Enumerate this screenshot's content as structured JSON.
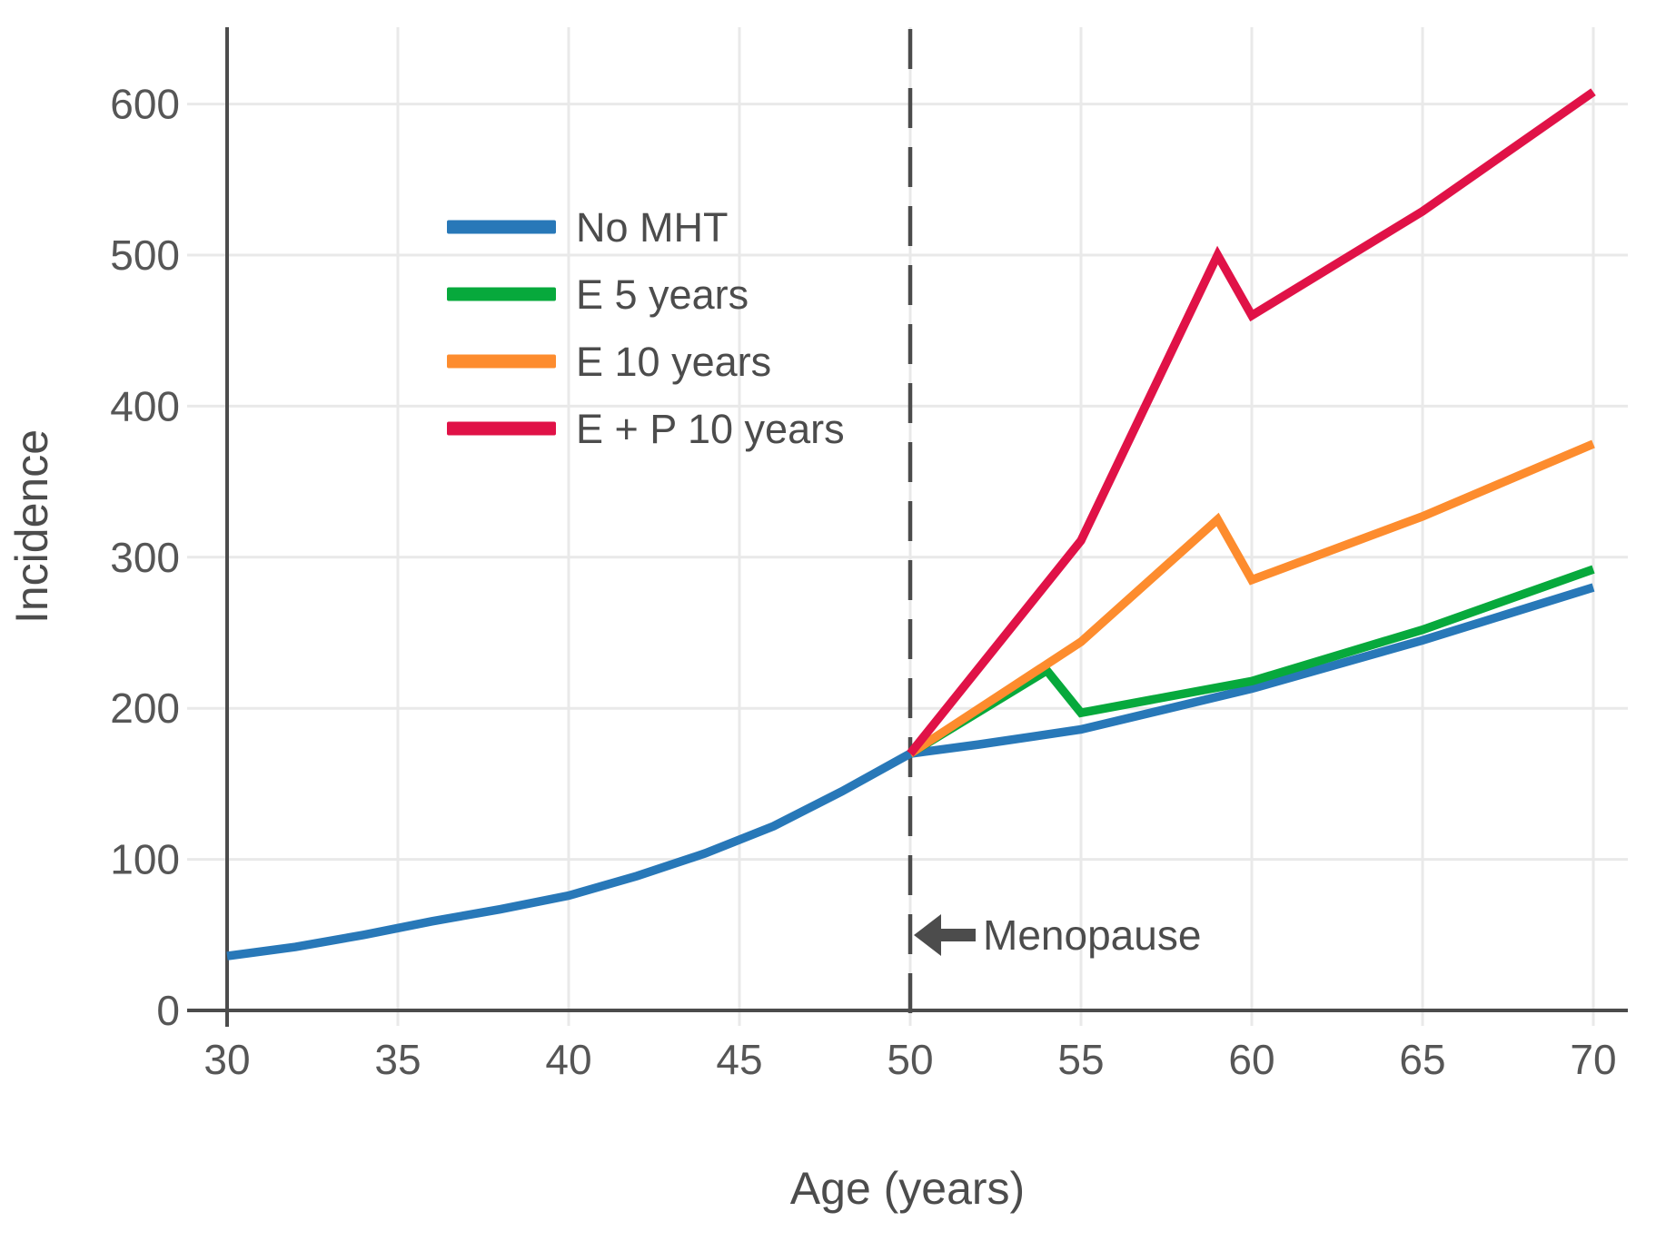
{
  "chart_data": {
    "type": "line",
    "title": "",
    "xlabel": "Age (years)",
    "ylabel": "Incidence",
    "x_ticks": [
      30,
      35,
      40,
      45,
      50,
      55,
      60,
      65,
      70
    ],
    "y_ticks": [
      0,
      100,
      200,
      300,
      400,
      500,
      600
    ],
    "xlim": [
      30,
      71
    ],
    "ylim": [
      0,
      650
    ],
    "grid": true,
    "legend_position": "upper-left-inside",
    "colors": {
      "axis": "#4c4c4c",
      "gridline": "#e9e9e9",
      "dashed_line": "#4c4c4c",
      "tick_text": "#565656"
    },
    "series": [
      {
        "name": "No MHT",
        "color": "#2878b8",
        "points": [
          [
            30,
            36
          ],
          [
            32,
            42
          ],
          [
            34,
            50
          ],
          [
            36,
            59
          ],
          [
            38,
            67
          ],
          [
            40,
            76
          ],
          [
            42,
            89
          ],
          [
            44,
            104
          ],
          [
            46,
            122
          ],
          [
            48,
            145
          ],
          [
            50,
            170
          ],
          [
            52,
            176
          ],
          [
            55,
            186
          ],
          [
            60,
            213
          ],
          [
            65,
            245
          ],
          [
            70,
            280
          ]
        ]
      },
      {
        "name": "E 5 years",
        "color": "#07a93c",
        "points": [
          [
            50,
            170
          ],
          [
            54,
            225
          ],
          [
            55,
            197
          ],
          [
            60,
            218
          ],
          [
            65,
            252
          ],
          [
            70,
            292
          ]
        ]
      },
      {
        "name": "E 10 years",
        "color": "#fd8c2e",
        "points": [
          [
            50,
            170
          ],
          [
            55,
            244
          ],
          [
            59,
            325
          ],
          [
            60,
            285
          ],
          [
            65,
            327
          ],
          [
            70,
            375
          ]
        ]
      },
      {
        "name": "E + P 10 years",
        "color": "#e01247",
        "points": [
          [
            50,
            170
          ],
          [
            55,
            311
          ],
          [
            59,
            500
          ],
          [
            60,
            460
          ],
          [
            65,
            529
          ],
          [
            70,
            608
          ]
        ]
      }
    ],
    "reference_line": {
      "x": 50,
      "style": "dashed",
      "orientation": "vertical"
    },
    "annotations": [
      {
        "label": "Menopause",
        "x": 50,
        "y": 50,
        "arrow_direction": "left"
      }
    ]
  }
}
